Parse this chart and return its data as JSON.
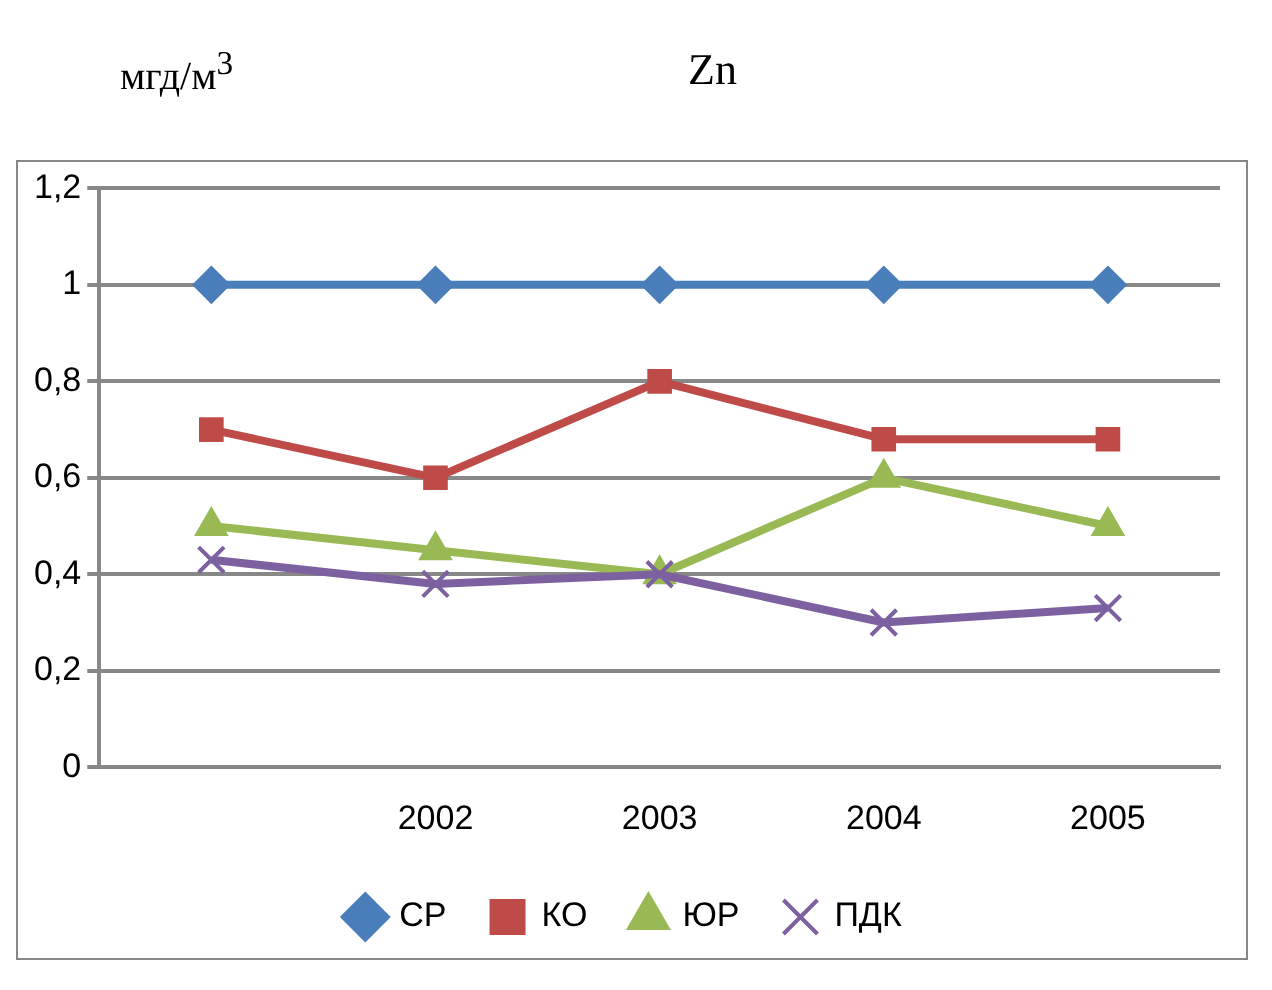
{
  "chart_data": {
    "type": "line",
    "title": "Zn",
    "ylabel": "мгд/м$^{3}$",
    "categories": [
      null,
      "2002",
      "2003",
      "2004",
      "2005"
    ],
    "series": [
      {
        "name": "СР",
        "color": "#4a7ebb",
        "marker": "diamond",
        "values": [
          1,
          1,
          1,
          1,
          1
        ]
      },
      {
        "name": "КО",
        "color": "#be4b48",
        "marker": "square",
        "values": [
          0.7,
          0.6,
          0.8,
          0.68,
          0.68
        ]
      },
      {
        "name": "ЮР",
        "color": "#98b954",
        "marker": "triangle",
        "values": [
          0.5,
          0.45,
          0.4,
          0.6,
          0.5
        ]
      },
      {
        "name": "ПДК",
        "color": "#7d60a0",
        "marker": "cross",
        "values": [
          0.43,
          0.38,
          0.4,
          0.3,
          0.33
        ]
      }
    ],
    "ylim": [
      0,
      1.2
    ],
    "yticks": [
      0,
      {
        "value": 0.2,
        "label": "0,2"
      },
      {
        "value": 0.4,
        "label": "0,4"
      },
      {
        "value": 0.6,
        "label": "0,6"
      },
      {
        "value": 0.8,
        "label": "0,8"
      },
      1,
      {
        "value": 1.2,
        "label": "1,2"
      }
    ],
    "grid": "y",
    "legend": "bottom",
    "line_style": "solid"
  }
}
